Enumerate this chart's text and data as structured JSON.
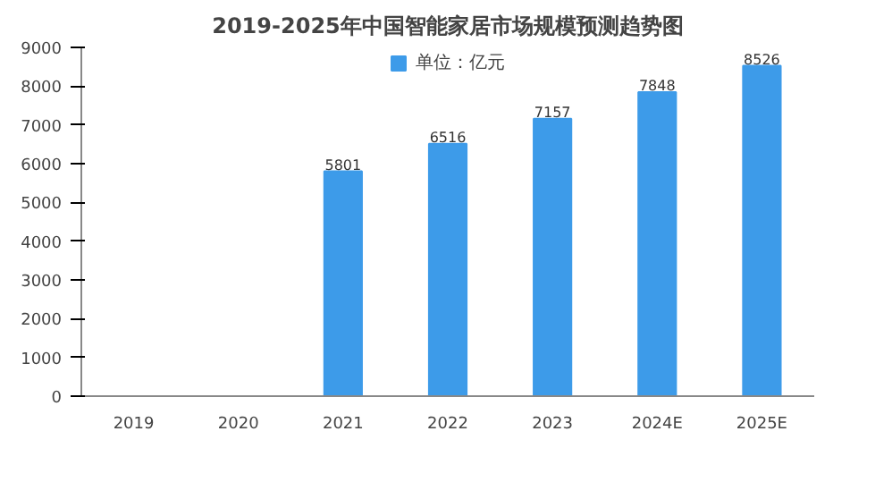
{
  "chart_data": {
    "type": "bar",
    "title": "2019-2025年中国智能家居市场规模预测趋势图",
    "categories": [
      "2019",
      "2020",
      "2021",
      "2022",
      "2023",
      "2024E",
      "2025E"
    ],
    "series": [
      {
        "name": "单位：亿元",
        "color": "#3d9be9",
        "values": [
          null,
          null,
          5801,
          6516,
          7157,
          7848,
          8526
        ]
      }
    ],
    "ylim": [
      0,
      9000
    ],
    "yticks": [
      0,
      1000,
      2000,
      3000,
      4000,
      5000,
      6000,
      7000,
      8000,
      9000
    ],
    "grid": false,
    "legend": "top",
    "data_labels": true
  }
}
